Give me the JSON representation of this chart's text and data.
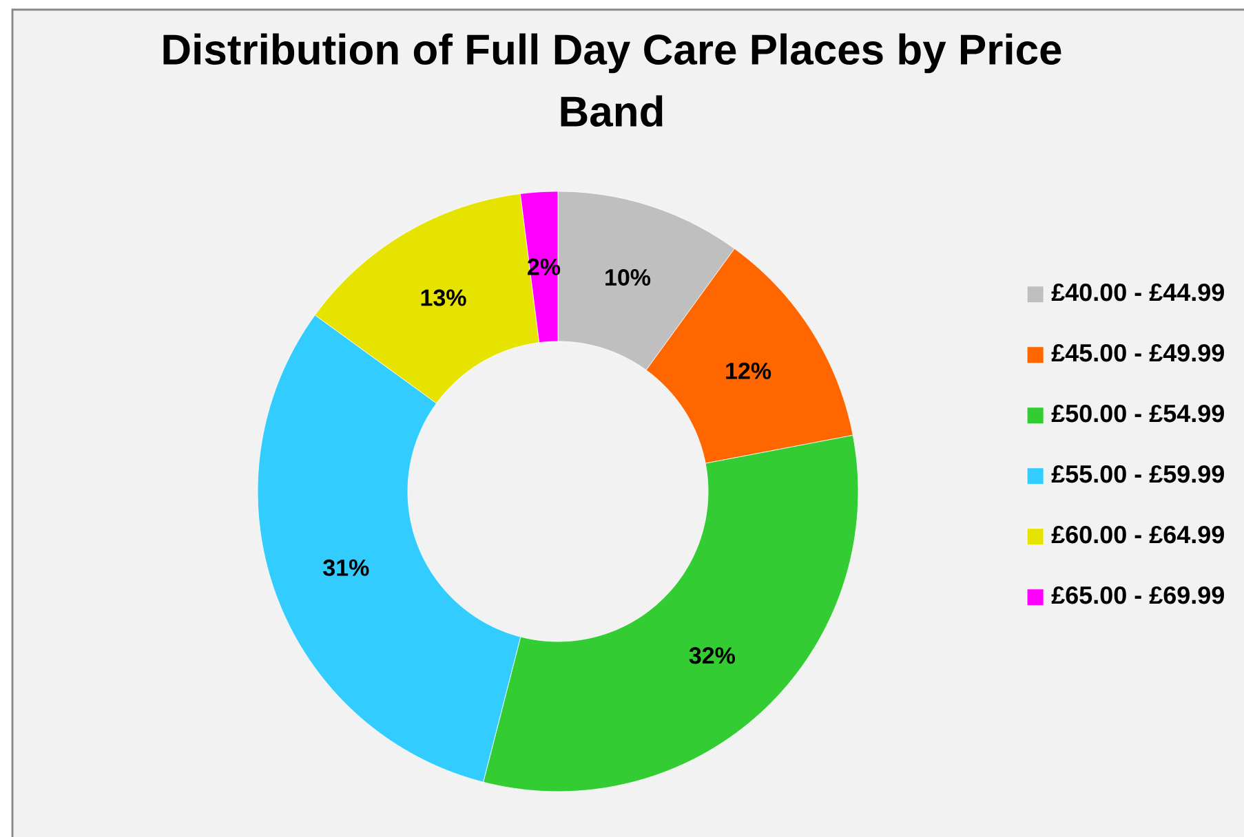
{
  "chart_data": {
    "type": "donut",
    "title": "Distribution of Full Day Care Places by Price Band",
    "categories": [
      "£40.00 - £44.99",
      "£45.00 - £49.99",
      "£50.00 - £54.99",
      "£55.00 - £59.99",
      "£60.00 - £64.99",
      "£65.00 - £69.99"
    ],
    "values": [
      10,
      12,
      32,
      31,
      13,
      2
    ],
    "colors": [
      "#bfbfbf",
      "#ff6600",
      "#33cc33",
      "#33ccff",
      "#e6e300",
      "#ff00ff"
    ],
    "value_labels": [
      "10%",
      "12%",
      "32%",
      "31%",
      "13%",
      "2%"
    ],
    "legend": "right"
  }
}
